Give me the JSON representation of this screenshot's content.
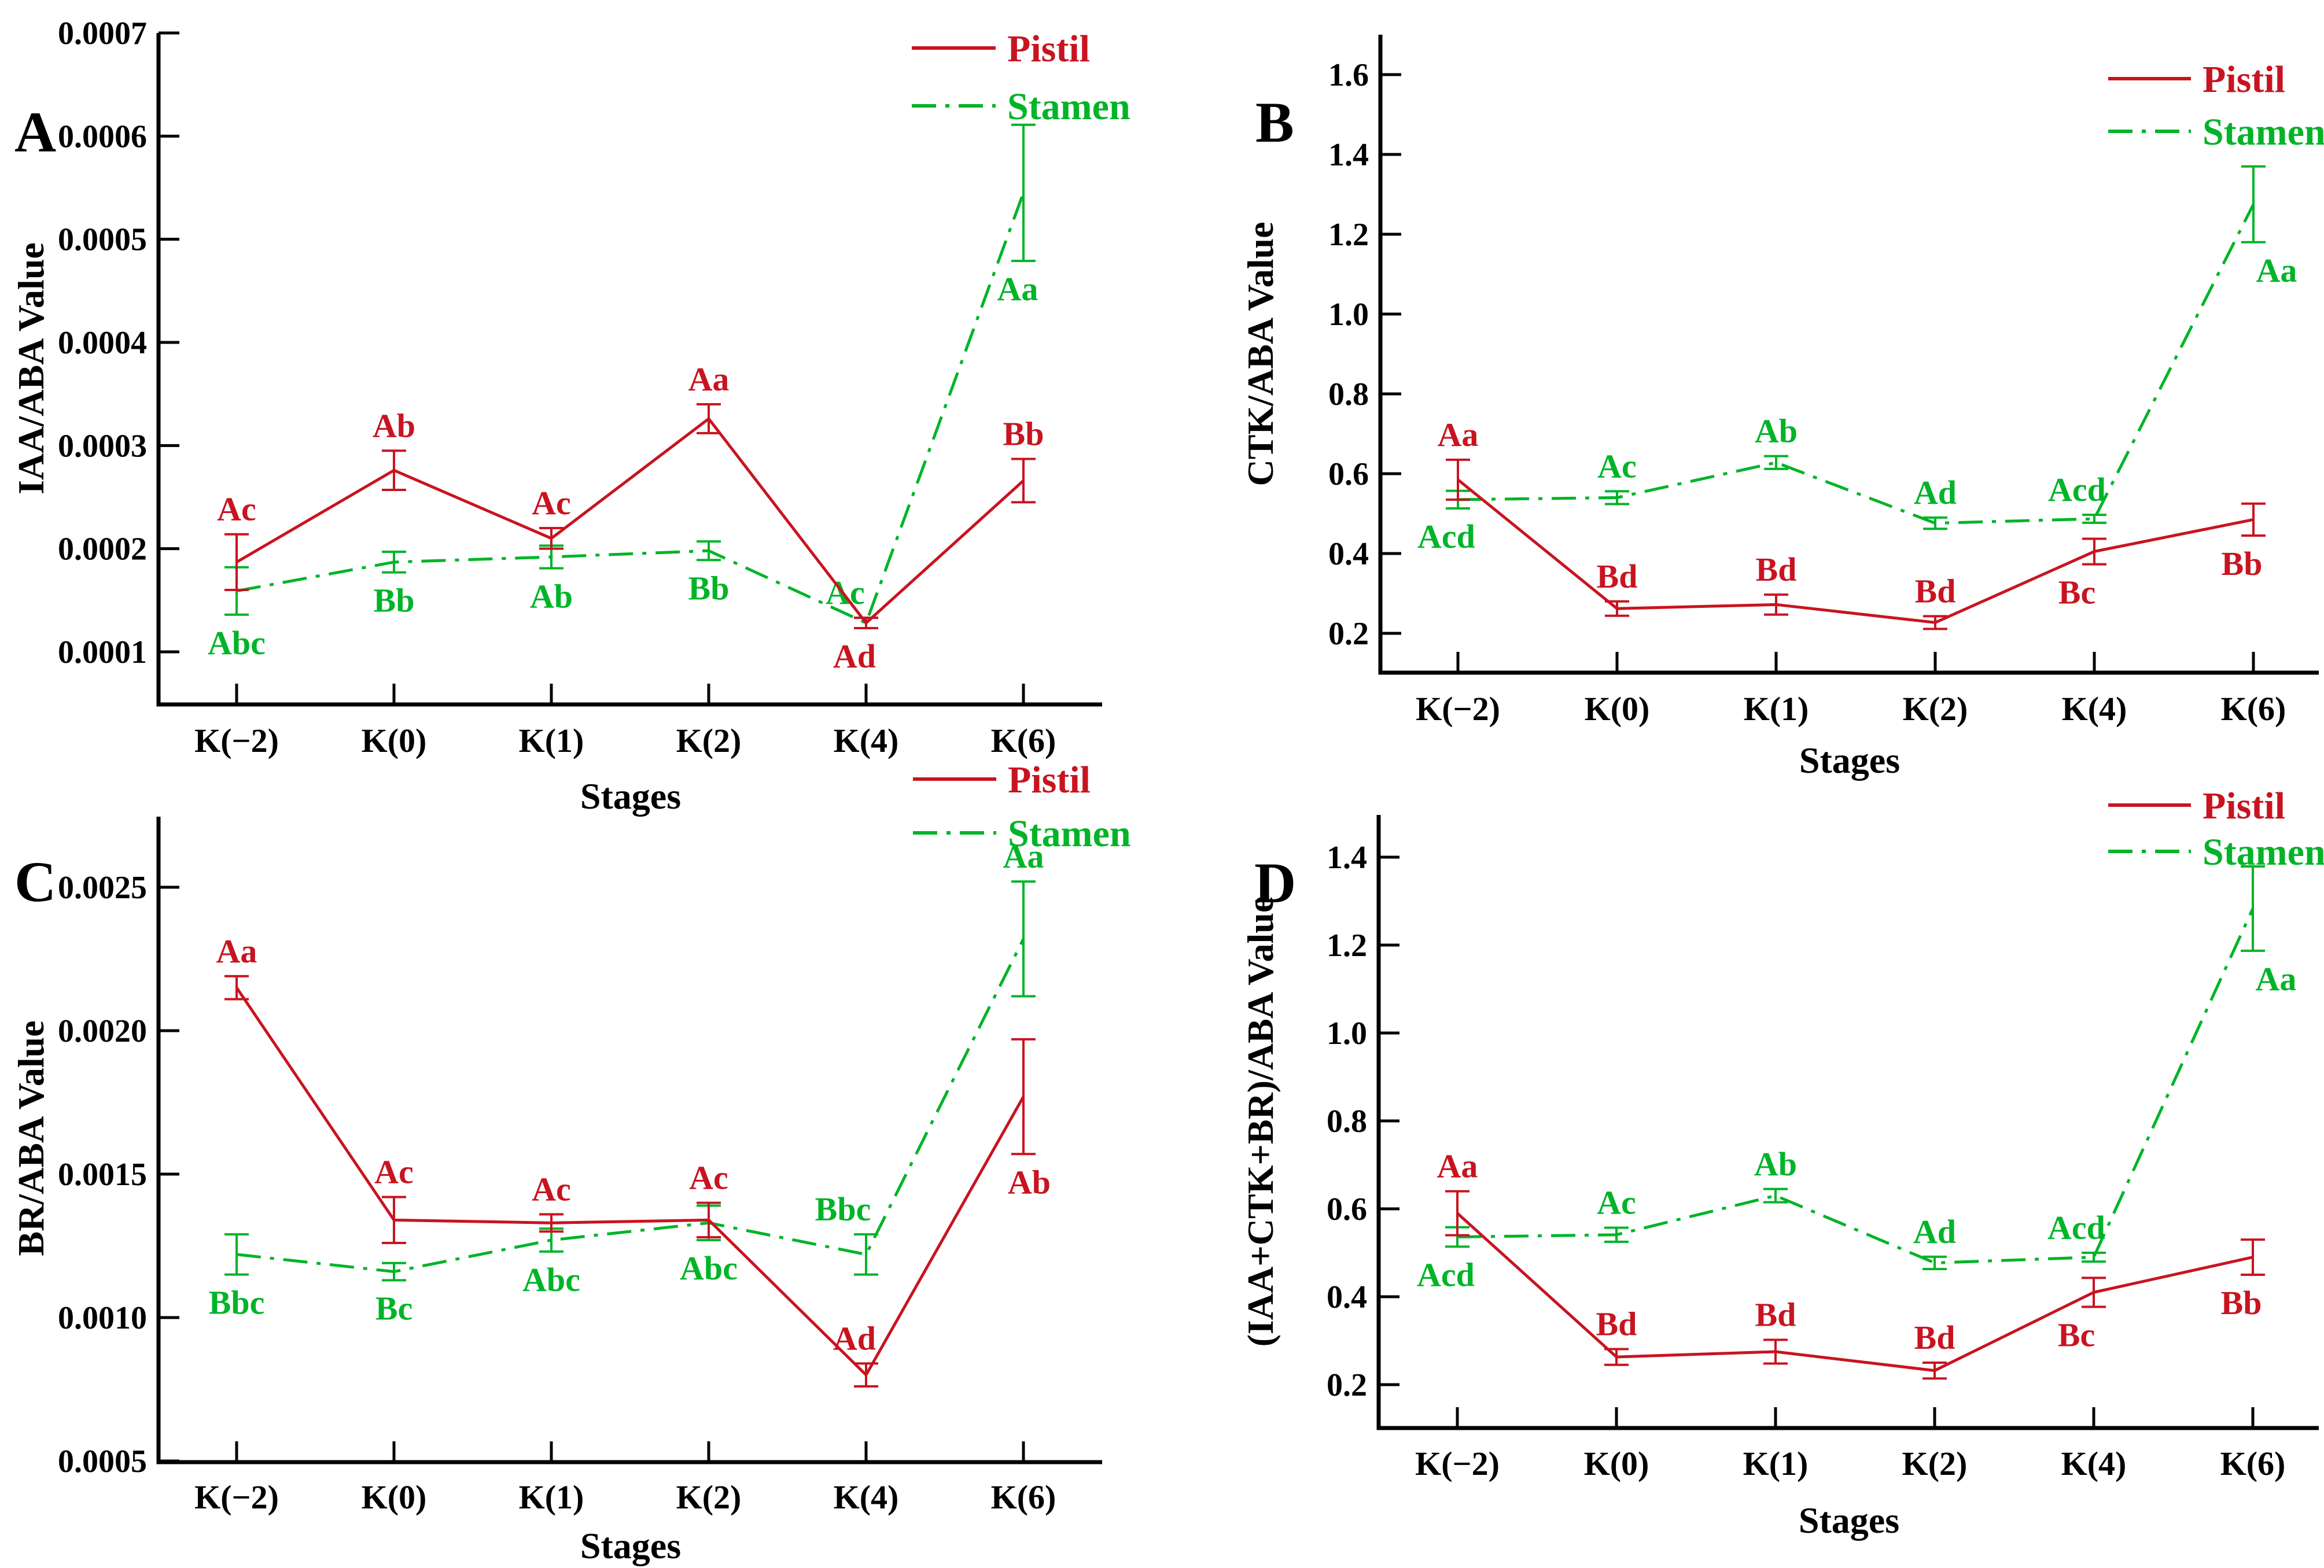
{
  "figure": {
    "background": "#ffffff",
    "axis_color": "#000000",
    "series_colors": {
      "pistil": "#c81420",
      "stamen": "#00b428"
    },
    "legend": {
      "pistil": "Pistil",
      "stamen": "Stamen"
    },
    "xlabel": "Stages",
    "categories": [
      "K(−2)",
      "K(0)",
      "K(1)",
      "K(2)",
      "K(4)",
      "K(6)"
    ],
    "panel_letters": [
      "A",
      "B",
      "C",
      "D"
    ]
  },
  "chart_data": [
    {
      "panel": "A",
      "type": "line",
      "title": "",
      "ylabel": "IAA/ABA Value",
      "xlabel": "Stages",
      "categories": [
        "K(−2)",
        "K(0)",
        "K(1)",
        "K(2)",
        "K(4)",
        "K(6)"
      ],
      "yticks": {
        "values": [
          0.0001,
          0.0002,
          0.0003,
          0.0004,
          0.0005,
          0.0006,
          0.0007
        ],
        "labels": [
          "0.0001",
          "0.0002",
          "0.0003",
          "0.0004",
          "0.0005",
          "0.0006",
          "0.0007"
        ]
      },
      "ylim": [
        6e-05,
        0.0007
      ],
      "grid": false,
      "legend_position": "top-right",
      "series": [
        {
          "name": "Pistil",
          "role": "pistil",
          "linestyle": "solid",
          "values": [
            0.000187,
            0.000276,
            0.00021,
            0.000326,
            0.000128,
            0.000266
          ],
          "errors": [
            2.7e-05,
            1.9e-05,
            1e-05,
            1.4e-05,
            5e-06,
            2.1e-05
          ],
          "point_labels": [
            "Ac",
            "Ab",
            "Ac",
            "Aa",
            "Ad",
            "Bb"
          ],
          "label_sides": [
            "above",
            "above",
            "above",
            "above",
            "below",
            "above"
          ]
        },
        {
          "name": "Stamen",
          "role": "stamen",
          "linestyle": "dashdot",
          "values": [
            0.000159,
            0.000187,
            0.000192,
            0.000198,
            0.000128,
            0.000545
          ],
          "errors": [
            2.3e-05,
            1e-05,
            1.1e-05,
            9e-06,
            5e-06,
            6.6e-05
          ],
          "point_labels": [
            "Abc",
            "Bb",
            "Ab",
            "Bb",
            "Ac",
            "Aa"
          ],
          "label_sides": [
            "below",
            "below",
            "below",
            "below",
            "above",
            "below"
          ]
        }
      ]
    },
    {
      "panel": "B",
      "type": "line",
      "title": "",
      "ylabel": "CTK/ABA Value",
      "xlabel": "Stages",
      "categories": [
        "K(−2)",
        "K(0)",
        "K(1)",
        "K(2)",
        "K(4)",
        "K(6)"
      ],
      "yticks": {
        "values": [
          0.2,
          0.4,
          0.6,
          0.8,
          1.0,
          1.2,
          1.4,
          1.6
        ],
        "labels": [
          "0.2",
          "0.4",
          "0.6",
          "0.8",
          "1.0",
          "1.2",
          "1.4",
          "1.6"
        ]
      },
      "ylim": [
        0.1,
        1.7
      ],
      "grid": false,
      "legend_position": "top-right",
      "series": [
        {
          "name": "Pistil",
          "role": "pistil",
          "linestyle": "solid",
          "values": [
            0.585,
            0.262,
            0.272,
            0.227,
            0.405,
            0.485
          ],
          "errors": [
            0.05,
            0.018,
            0.025,
            0.016,
            0.032,
            0.04
          ],
          "point_labels": [
            "Aa",
            "Bd",
            "Bd",
            "Bd",
            "Bc",
            "Bb"
          ],
          "label_sides": [
            "above",
            "above",
            "above",
            "above",
            "below",
            "below"
          ]
        },
        {
          "name": "Stamen",
          "role": "stamen",
          "linestyle": "dashdot",
          "values": [
            0.535,
            0.54,
            0.628,
            0.476,
            0.487,
            1.275
          ],
          "errors": [
            0.022,
            0.016,
            0.016,
            0.014,
            0.01,
            0.095
          ],
          "point_labels": [
            "Acd",
            "Ac",
            "Ab",
            "Ad",
            "Acd",
            "Aa"
          ],
          "label_sides": [
            "below",
            "above",
            "above",
            "above",
            "above",
            "below"
          ]
        }
      ]
    },
    {
      "panel": "C",
      "type": "line",
      "title": "",
      "ylabel": "BR/ABA Value",
      "xlabel": "Stages",
      "categories": [
        "K(−2)",
        "K(0)",
        "K(1)",
        "K(2)",
        "K(4)",
        "K(6)"
      ],
      "yticks": {
        "values": [
          0.0005,
          0.001,
          0.0015,
          0.002,
          0.0025
        ],
        "labels": [
          "0.0005",
          "0.0010",
          "0.0015",
          "0.0020",
          "0.0025"
        ]
      },
      "ylim": [
        0.0005,
        0.00275
      ],
      "grid": false,
      "legend_position": "top-right",
      "series": [
        {
          "name": "Pistil",
          "role": "pistil",
          "linestyle": "solid",
          "values": [
            0.00215,
            0.00134,
            0.00133,
            0.00134,
            0.0008,
            0.00177
          ],
          "errors": [
            4e-05,
            8e-05,
            3e-05,
            6e-05,
            4e-05,
            0.0002
          ],
          "point_labels": [
            "Aa",
            "Ac",
            "Ac",
            "Ac",
            "Ad",
            "Ab"
          ],
          "label_sides": [
            "above",
            "above",
            "above",
            "above",
            "above",
            "below"
          ]
        },
        {
          "name": "Stamen",
          "role": "stamen",
          "linestyle": "dashdot",
          "values": [
            0.00122,
            0.00116,
            0.00127,
            0.00133,
            0.00122,
            0.00232
          ],
          "errors": [
            7e-05,
            3e-05,
            4e-05,
            6e-05,
            7e-05,
            0.0002
          ],
          "point_labels": [
            "Bbc",
            "Bc",
            "Abc",
            "Abc",
            "Bbc",
            "Aa"
          ],
          "label_sides": [
            "below",
            "below",
            "below",
            "below",
            "above",
            "above"
          ]
        }
      ]
    },
    {
      "panel": "D",
      "type": "line",
      "title": "",
      "ylabel": "(IAA+CTK+BR)/ABA Value",
      "xlabel": "Stages",
      "categories": [
        "K(−2)",
        "K(0)",
        "K(1)",
        "K(2)",
        "K(4)",
        "K(6)"
      ],
      "yticks": {
        "values": [
          0.2,
          0.4,
          0.6,
          0.8,
          1.0,
          1.2,
          1.4
        ],
        "labels": [
          "0.2",
          "0.4",
          "0.6",
          "0.8",
          "1.0",
          "1.2",
          "1.4"
        ]
      },
      "ylim": [
        0.08,
        1.5
      ],
      "grid": false,
      "legend_position": "top-right",
      "series": [
        {
          "name": "Pistil",
          "role": "pistil",
          "linestyle": "solid",
          "values": [
            0.59,
            0.263,
            0.275,
            0.232,
            0.41,
            0.49
          ],
          "errors": [
            0.05,
            0.018,
            0.027,
            0.018,
            0.033,
            0.04
          ],
          "point_labels": [
            "Aa",
            "Bd",
            "Bd",
            "Bd",
            "Bc",
            "Bb"
          ],
          "label_sides": [
            "above",
            "above",
            "above",
            "above",
            "below",
            "below"
          ]
        },
        {
          "name": "Stamen",
          "role": "stamen",
          "linestyle": "dashdot",
          "values": [
            0.536,
            0.541,
            0.63,
            0.477,
            0.49,
            1.283
          ],
          "errors": [
            0.022,
            0.016,
            0.015,
            0.014,
            0.01,
            0.096
          ],
          "point_labels": [
            "Acd",
            "Ac",
            "Ab",
            "Ad",
            "Acd",
            "Aa"
          ],
          "label_sides": [
            "below",
            "above",
            "above",
            "above",
            "above",
            "below"
          ]
        }
      ]
    }
  ]
}
